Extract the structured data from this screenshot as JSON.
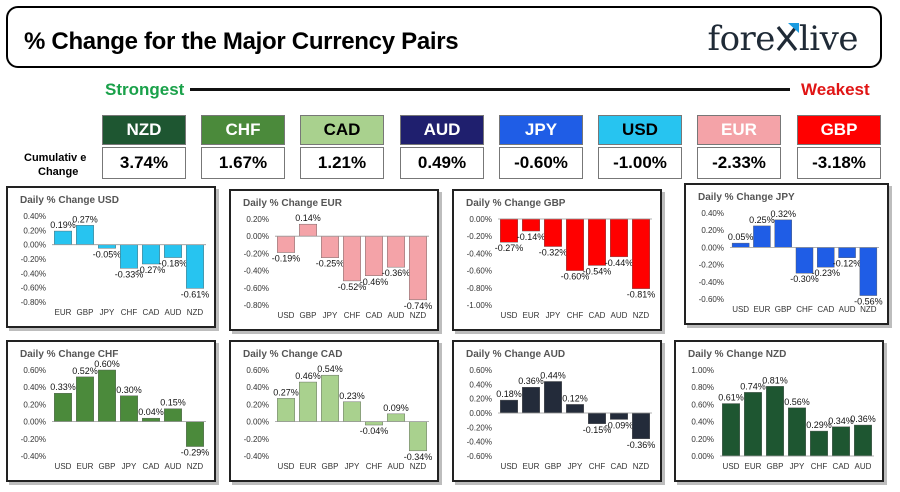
{
  "header": {
    "title": "% Change for the Major Currency Pairs",
    "logo_left": "fore",
    "logo_right": "live",
    "strongest": "Strongest",
    "weakest": "Weakest",
    "cumulative_label_line1": "Cumulativ e",
    "cumulative_label_line2": "Change"
  },
  "currencies": [
    {
      "code": "NZD",
      "value": "3.74%",
      "color": "#1e5631",
      "text_color": "#ffffff"
    },
    {
      "code": "CHF",
      "value": "1.67%",
      "color": "#4b8a3b",
      "text_color": "#ffffff"
    },
    {
      "code": "CAD",
      "value": "1.21%",
      "color": "#a9d18e",
      "text_color": "#000000"
    },
    {
      "code": "AUD",
      "value": "0.49%",
      "color": "#1f1f6e",
      "text_color": "#ffffff"
    },
    {
      "code": "JPY",
      "value": "-0.60%",
      "color": "#1f5de6",
      "text_color": "#ffffff"
    },
    {
      "code": "USD",
      "value": "-1.00%",
      "color": "#27c4f0",
      "text_color": "#000000"
    },
    {
      "code": "EUR",
      "value": "-2.33%",
      "color": "#f4a3a8",
      "text_color": "#ffffff"
    },
    {
      "code": "GBP",
      "value": "-3.18%",
      "color": "#ff0000",
      "text_color": "#ffffff"
    }
  ],
  "chart_data": [
    {
      "type": "bar",
      "title": "Daily % Change USD",
      "color": "#27c4f0",
      "categories": [
        "EUR",
        "GBP",
        "JPY",
        "CHF",
        "CAD",
        "AUD",
        "NZD"
      ],
      "values": [
        0.19,
        0.27,
        -0.05,
        -0.33,
        -0.27,
        -0.18,
        -0.61
      ],
      "labels": [
        "0.19%",
        "0.27%",
        "-0.05%",
        "-0.33%",
        "-0.27%",
        "-0.18%",
        "-0.61%"
      ],
      "ylim": [
        -0.8,
        0.4
      ],
      "yticks": [
        0.4,
        0.2,
        0.0,
        -0.2,
        -0.4,
        -0.6,
        -0.8
      ],
      "ytick_labels": [
        "0.40%",
        "0.20%",
        "0.00%",
        "-0.20%",
        "-0.40%",
        "-0.60%",
        "-0.80%"
      ]
    },
    {
      "type": "bar",
      "title": "Daily % Change EUR",
      "color": "#f4a3a8",
      "categories": [
        "USD",
        "GBP",
        "JPY",
        "CHF",
        "CAD",
        "AUD",
        "NZD"
      ],
      "values": [
        -0.19,
        0.14,
        -0.25,
        -0.52,
        -0.46,
        -0.36,
        -0.74
      ],
      "labels": [
        "-0.19%",
        "0.14%",
        "-0.25%",
        "-0.52%",
        "-0.46%",
        "-0.36%",
        "-0.74%"
      ],
      "ylim": [
        -0.8,
        0.2
      ],
      "yticks": [
        0.2,
        0.0,
        -0.2,
        -0.4,
        -0.6,
        -0.8
      ],
      "ytick_labels": [
        "0.20%",
        "0.00%",
        "-0.20%",
        "-0.40%",
        "-0.60%",
        "-0.80%"
      ]
    },
    {
      "type": "bar",
      "title": "Daily % Change GBP",
      "color": "#ff0000",
      "categories": [
        "USD",
        "EUR",
        "JPY",
        "CHF",
        "CAD",
        "AUD",
        "NZD"
      ],
      "values": [
        -0.27,
        -0.14,
        -0.32,
        -0.6,
        -0.54,
        -0.44,
        -0.81
      ],
      "labels": [
        "-0.27%",
        "-0.14%",
        "-0.32%",
        "-0.60%",
        "-0.54%",
        "-0.44%",
        "-0.81%"
      ],
      "ylim": [
        -1.0,
        0.0
      ],
      "yticks": [
        0.0,
        -0.2,
        -0.4,
        -0.6,
        -0.8,
        -1.0
      ],
      "ytick_labels": [
        "0.00%",
        "-0.20%",
        "-0.40%",
        "-0.60%",
        "-0.80%",
        "-1.00%"
      ]
    },
    {
      "type": "bar",
      "title": "Daily % Change JPY",
      "color": "#1f5de6",
      "categories": [
        "USD",
        "EUR",
        "GBP",
        "CHF",
        "CAD",
        "AUD",
        "NZD"
      ],
      "values": [
        0.05,
        0.25,
        0.32,
        -0.3,
        -0.23,
        -0.12,
        -0.56
      ],
      "labels": [
        "0.05%",
        "0.25%",
        "0.32%",
        "-0.30%",
        "-0.23%",
        "-0.12%",
        "-0.56%"
      ],
      "ylim": [
        -0.6,
        0.4
      ],
      "yticks": [
        0.4,
        0.2,
        0.0,
        -0.2,
        -0.4,
        -0.6
      ],
      "ytick_labels": [
        "0.40%",
        "0.20%",
        "0.00%",
        "-0.20%",
        "-0.40%",
        "-0.60%"
      ]
    },
    {
      "type": "bar",
      "title": "Daily % Change CHF",
      "color": "#4b8a3b",
      "categories": [
        "USD",
        "EUR",
        "GBP",
        "JPY",
        "CAD",
        "AUD",
        "NZD"
      ],
      "values": [
        0.33,
        0.52,
        0.6,
        0.3,
        0.04,
        0.15,
        -0.29
      ],
      "labels": [
        "0.33%",
        "0.52%",
        "0.60%",
        "0.30%",
        "0.04%",
        "0.15%",
        "-0.29%"
      ],
      "ylim": [
        -0.4,
        0.6
      ],
      "yticks": [
        0.6,
        0.4,
        0.2,
        0.0,
        -0.2,
        -0.4
      ],
      "ytick_labels": [
        "0.60%",
        "0.40%",
        "0.20%",
        "0.00%",
        "-0.20%",
        "-0.40%"
      ]
    },
    {
      "type": "bar",
      "title": "Daily % Change CAD",
      "color": "#a9d18e",
      "categories": [
        "USD",
        "EUR",
        "GBP",
        "JPY",
        "CHF",
        "AUD",
        "NZD"
      ],
      "values": [
        0.27,
        0.46,
        0.54,
        0.23,
        -0.04,
        0.09,
        -0.34
      ],
      "labels": [
        "0.27%",
        "0.46%",
        "0.54%",
        "0.23%",
        "-0.04%",
        "0.09%",
        "-0.34%"
      ],
      "ylim": [
        -0.4,
        0.6
      ],
      "yticks": [
        0.6,
        0.4,
        0.2,
        0.0,
        -0.2,
        -0.4
      ],
      "ytick_labels": [
        "0.60%",
        "0.40%",
        "0.20%",
        "0.00%",
        "-0.20%",
        "-0.40%"
      ]
    },
    {
      "type": "bar",
      "title": "Daily % Change AUD",
      "color": "#232b3a",
      "categories": [
        "USD",
        "EUR",
        "GBP",
        "JPY",
        "CHF",
        "CAD",
        "NZD"
      ],
      "values": [
        0.18,
        0.36,
        0.44,
        0.12,
        -0.15,
        -0.09,
        -0.36
      ],
      "labels": [
        "0.18%",
        "0.36%",
        "0.44%",
        "0.12%",
        "-0.15%",
        "-0.09%",
        "-0.36%"
      ],
      "ylim": [
        -0.6,
        0.6
      ],
      "yticks": [
        0.6,
        0.4,
        0.2,
        0.0,
        -0.2,
        -0.4,
        -0.6
      ],
      "ytick_labels": [
        "0.60%",
        "0.40%",
        "0.20%",
        "0.00%",
        "-0.20%",
        "-0.40%",
        "-0.60%"
      ]
    },
    {
      "type": "bar",
      "title": "Daily % Change NZD",
      "color": "#1e5631",
      "categories": [
        "USD",
        "EUR",
        "GBP",
        "JPY",
        "CHF",
        "CAD",
        "AUD"
      ],
      "values": [
        0.61,
        0.74,
        0.81,
        0.56,
        0.29,
        0.34,
        0.36
      ],
      "labels": [
        "0.61%",
        "0.74%",
        "0.81%",
        "0.56%",
        "0.29%",
        "0.34%",
        "0.36%"
      ],
      "ylim": [
        0.0,
        1.0
      ],
      "yticks": [
        1.0,
        0.8,
        0.6,
        0.4,
        0.2,
        0.0
      ],
      "ytick_labels": [
        "1.00%",
        "0.80%",
        "0.60%",
        "0.40%",
        "0.20%",
        "0.00%"
      ]
    }
  ]
}
